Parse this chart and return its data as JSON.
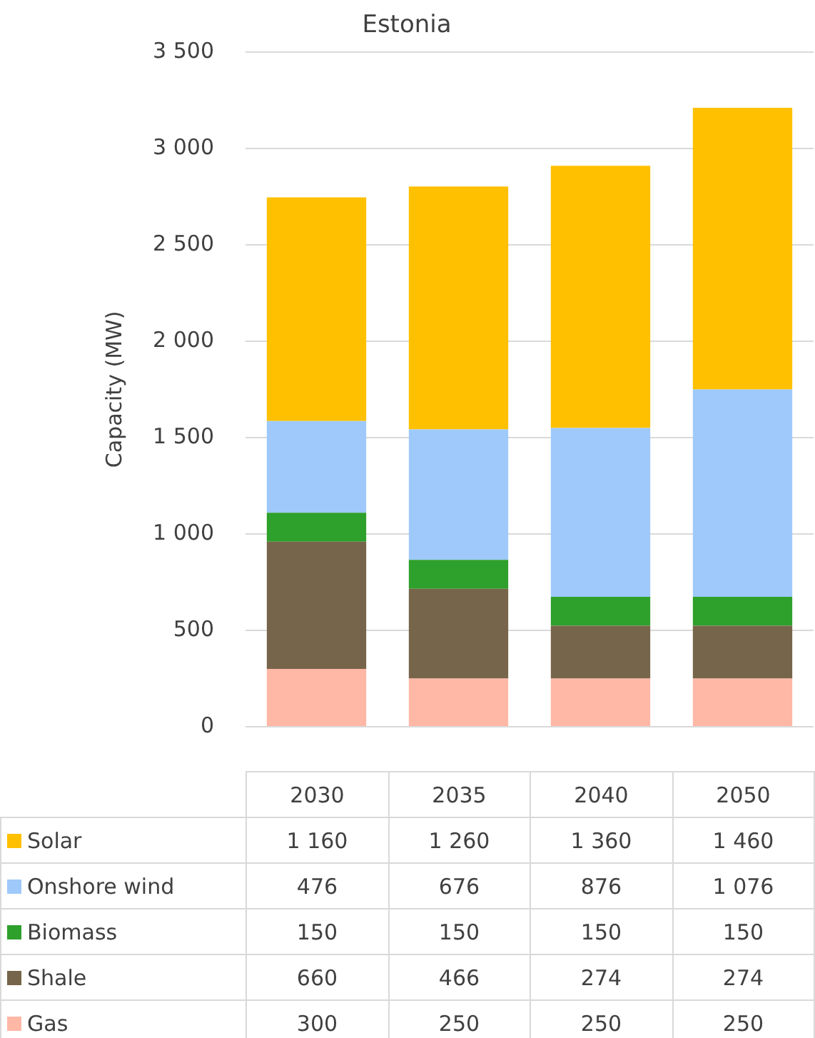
{
  "chart_data": {
    "type": "bar",
    "title": "Estonia",
    "ylabel": "Capacity (MW)",
    "stacked": true,
    "grid": "y",
    "legend": "bottom left",
    "categories": [
      "2030",
      "2035",
      "2040",
      "2050"
    ],
    "ylim": [
      0,
      3500
    ],
    "yticks": [
      0,
      {
        "value": 500,
        "label": "500"
      },
      {
        "value": 1000,
        "label": "1 000"
      },
      {
        "value": 1500,
        "label": "1 500"
      },
      {
        "value": 2000,
        "label": "2 000"
      },
      {
        "value": 2500,
        "label": "2 500"
      },
      {
        "value": 3000,
        "label": "3 000"
      },
      {
        "value": 3500,
        "label": "3 500"
      }
    ],
    "series": [
      {
        "name": "Gas",
        "color": "#ffb7a6",
        "values": [
          300,
          250,
          250,
          250
        ],
        "value_labels": [
          "300",
          "250",
          "250",
          "250"
        ]
      },
      {
        "name": "Shale",
        "color": "#76654a",
        "values": [
          660,
          466,
          274,
          274
        ],
        "value_labels": [
          "660",
          "466",
          "274",
          "274"
        ]
      },
      {
        "name": "Biomass",
        "color": "#2ea02c",
        "values": [
          150,
          150,
          150,
          150
        ],
        "value_labels": [
          "150",
          "150",
          "150",
          "150"
        ]
      },
      {
        "name": "Onshore wind",
        "color": "#9ec9fa",
        "values": [
          476,
          676,
          876,
          1076
        ],
        "value_labels": [
          "476",
          "676",
          "876",
          "1 076"
        ]
      },
      {
        "name": "Solar",
        "color": "#ffc000",
        "values": [
          1160,
          1260,
          1360,
          1460
        ],
        "value_labels": [
          "1 160",
          "1 260",
          "1 360",
          "1 460"
        ]
      }
    ]
  }
}
